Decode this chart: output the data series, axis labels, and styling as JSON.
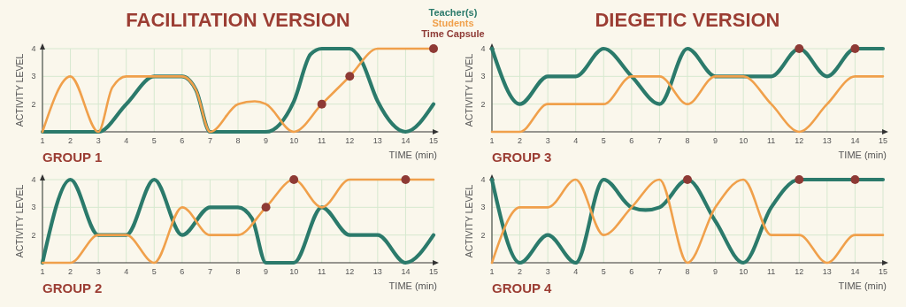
{
  "chart_data": [
    {
      "type": "line",
      "title": "FACILITATION VERSION",
      "subtitle": "GROUP 1",
      "xlabel": "TIME (min)",
      "ylabel": "ACTIVITY LEVEL",
      "xlim": [
        1,
        15
      ],
      "xticks": [
        1,
        2,
        3,
        4,
        5,
        6,
        7,
        8,
        9,
        10,
        11,
        12,
        13,
        14,
        15
      ],
      "ylim": [
        1,
        4
      ],
      "yticks": [
        2,
        3,
        4
      ],
      "grid": true,
      "legend": "top right",
      "series": [
        {
          "name": "Teacher(s)",
          "color": "#2b7a6b",
          "x": [
            1,
            2,
            3,
            4,
            5,
            6,
            6.5,
            7,
            8,
            9,
            10,
            10.6,
            11,
            12,
            12.4,
            13,
            14,
            15
          ],
          "values": [
            1,
            1,
            1,
            2,
            3,
            3,
            2.5,
            1,
            1,
            1,
            2.1,
            3.8,
            4,
            4,
            3.6,
            2.1,
            1,
            2
          ]
        },
        {
          "name": "Students",
          "color": "#f0a04b",
          "x": [
            1,
            2,
            3,
            3.5,
            4,
            5,
            6,
            6.5,
            7,
            8,
            8.6,
            9,
            10,
            11,
            12,
            13,
            14,
            15
          ],
          "values": [
            1,
            3,
            1,
            2.6,
            3,
            3,
            3,
            2.5,
            1,
            2,
            2.1,
            2,
            1,
            2,
            3,
            4,
            4,
            4
          ]
        },
        {
          "name": "Time Capsule",
          "type": "scatter",
          "marker": "circle",
          "color": "#8e3a35",
          "x": [
            11,
            12,
            15
          ],
          "values": [
            2,
            3,
            4
          ]
        }
      ]
    },
    {
      "type": "line",
      "title": "DIEGETIC VERSION",
      "subtitle": "GROUP 3",
      "xlabel": "TIME (min)",
      "ylabel": "ACTIVITY LEVEL",
      "xlim": [
        1,
        15
      ],
      "xticks": [
        1,
        2,
        3,
        4,
        5,
        6,
        7,
        8,
        9,
        10,
        11,
        12,
        13,
        14,
        15
      ],
      "ylim": [
        1,
        4
      ],
      "yticks": [
        2,
        3,
        4
      ],
      "grid": true,
      "series": [
        {
          "color": "#2b7a6b",
          "x": [
            1,
            2,
            3,
            4,
            5,
            6,
            7,
            8,
            9,
            10,
            11,
            12,
            13,
            14,
            15
          ],
          "values": [
            4,
            2,
            3,
            3,
            4,
            3,
            2,
            4,
            3,
            3,
            3,
            4,
            3,
            4,
            4
          ]
        },
        {
          "color": "#f0a04b",
          "x": [
            1,
            2,
            3,
            4,
            5,
            6,
            7,
            8,
            9,
            10,
            11,
            12,
            13,
            14,
            15
          ],
          "values": [
            1,
            1,
            2,
            2,
            2,
            3,
            3,
            2,
            3,
            3,
            2,
            1,
            2,
            3,
            3
          ]
        },
        {
          "type": "scatter",
          "marker": "circle",
          "color": "#8e3a35",
          "x": [
            12,
            14
          ],
          "values": [
            4,
            4
          ]
        }
      ]
    },
    {
      "type": "line",
      "subtitle": "GROUP 2",
      "xlabel": "TIME (min)",
      "ylabel": "ACTIVITY LEVEL",
      "xlim": [
        1,
        15
      ],
      "xticks": [
        1,
        2,
        3,
        4,
        5,
        6,
        7,
        8,
        9,
        10,
        11,
        12,
        13,
        14,
        15
      ],
      "ylim": [
        1,
        4
      ],
      "yticks": [
        2,
        3,
        4
      ],
      "grid": true,
      "series": [
        {
          "color": "#2b7a6b",
          "x": [
            1,
            2,
            3,
            4,
            5,
            6,
            7,
            8,
            8.5,
            9,
            10,
            11,
            12,
            13,
            14,
            15
          ],
          "values": [
            1,
            4,
            2,
            2,
            4,
            2,
            3,
            3,
            2.6,
            1,
            1,
            3,
            2,
            2,
            1,
            2
          ]
        },
        {
          "color": "#f0a04b",
          "x": [
            1,
            2,
            3,
            4,
            5,
            6,
            7,
            8,
            9,
            10,
            11,
            12,
            13,
            14,
            15
          ],
          "values": [
            1,
            1,
            2,
            2,
            1,
            3,
            2,
            2,
            3,
            4,
            3,
            4,
            4,
            4,
            4
          ]
        },
        {
          "type": "scatter",
          "marker": "circle",
          "color": "#8e3a35",
          "x": [
            9,
            10,
            14
          ],
          "values": [
            3,
            4,
            4
          ]
        }
      ]
    },
    {
      "type": "line",
      "subtitle": "GROUP 4",
      "xlabel": "TIME (min)",
      "ylabel": "ACTIVITY LEVEL",
      "xlim": [
        1,
        15
      ],
      "xticks": [
        1,
        2,
        3,
        4,
        5,
        6,
        7,
        8,
        9,
        10,
        11,
        12,
        13,
        14,
        15
      ],
      "ylim": [
        1,
        4
      ],
      "yticks": [
        2,
        3,
        4
      ],
      "grid": true,
      "series": [
        {
          "color": "#2b7a6b",
          "x": [
            1,
            2,
            3,
            4,
            5,
            6,
            6.5,
            7,
            8,
            9,
            10,
            11,
            12,
            13,
            14,
            15
          ],
          "values": [
            4,
            1,
            2,
            1,
            4,
            3,
            2.9,
            3,
            4,
            2.5,
            1,
            3,
            4,
            4,
            4,
            4
          ]
        },
        {
          "color": "#f0a04b",
          "x": [
            1,
            2,
            3,
            4,
            5,
            6,
            7,
            8,
            9,
            10,
            11,
            12,
            13,
            14,
            15
          ],
          "values": [
            1,
            3,
            3,
            4,
            2,
            3,
            4,
            1,
            3,
            4,
            2,
            2,
            1,
            2,
            2
          ]
        },
        {
          "type": "scatter",
          "marker": "circle",
          "color": "#8e3a35",
          "x": [
            8,
            12,
            14
          ],
          "values": [
            4,
            4,
            4
          ]
        }
      ]
    }
  ]
}
